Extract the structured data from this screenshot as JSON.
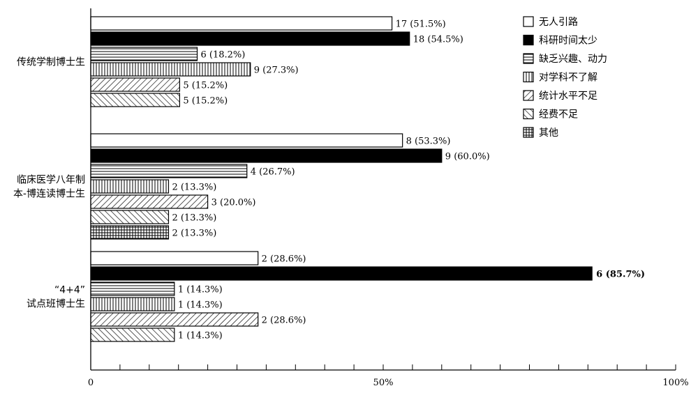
{
  "chart_data": {
    "type": "bar",
    "orientation": "horizontal",
    "xlim": [
      0,
      100
    ],
    "x_ticks": [
      "0",
      "50%",
      "100%"
    ],
    "legend": {
      "placement": "top-right"
    },
    "series": [
      {
        "name": "无人引路",
        "fill": "#ffffff",
        "pattern": "none"
      },
      {
        "name": "科研时间太少",
        "fill": "#000000",
        "pattern": "solid"
      },
      {
        "name": "缺乏兴趣、动力",
        "fill": "#ffffff",
        "pattern": "horizontal-lines"
      },
      {
        "name": "对学科不了解",
        "fill": "#ffffff",
        "pattern": "vertical-lines"
      },
      {
        "name": "统计水平不足",
        "fill": "#ffffff",
        "pattern": "diagonal-up"
      },
      {
        "name": "经费不足",
        "fill": "#ffffff",
        "pattern": "diagonal-down"
      },
      {
        "name": "其他",
        "fill": "#ffffff",
        "pattern": "grid"
      }
    ],
    "groups": [
      {
        "label_lines": [
          "传统学制博士生"
        ],
        "bars": [
          {
            "series": 0,
            "value": 51.5,
            "label": "17 (51.5%)"
          },
          {
            "series": 1,
            "value": 54.5,
            "label": "18 (54.5%)"
          },
          {
            "series": 2,
            "value": 18.2,
            "label": "6 (18.2%)"
          },
          {
            "series": 3,
            "value": 27.3,
            "label": "9 (27.3%)"
          },
          {
            "series": 4,
            "value": 15.2,
            "label": "5 (15.2%)"
          },
          {
            "series": 5,
            "value": 15.2,
            "label": "5 (15.2%)"
          }
        ]
      },
      {
        "label_lines": [
          "临床医学八年制",
          "本-博连读博士生"
        ],
        "bars": [
          {
            "series": 0,
            "value": 53.3,
            "label": "8 (53.3%)"
          },
          {
            "series": 1,
            "value": 60.0,
            "label": "9 (60.0%)"
          },
          {
            "series": 2,
            "value": 26.7,
            "label": "4 (26.7%)"
          },
          {
            "series": 3,
            "value": 13.3,
            "label": "2 (13.3%)"
          },
          {
            "series": 4,
            "value": 20.0,
            "label": "3 (20.0%)"
          },
          {
            "series": 5,
            "value": 13.3,
            "label": "2 (13.3%)"
          },
          {
            "series": 6,
            "value": 13.3,
            "label": "2 (13.3%)"
          }
        ]
      },
      {
        "label_lines": [
          "“4+4”",
          "试点班博士生"
        ],
        "bars": [
          {
            "series": 0,
            "value": 28.6,
            "label": "2 (28.6%)"
          },
          {
            "series": 1,
            "value": 85.7,
            "label": "6 (85.7%)",
            "label_inside": true
          },
          {
            "series": 2,
            "value": 14.3,
            "label": "1 (14.3%)"
          },
          {
            "series": 3,
            "value": 14.3,
            "label": "1 (14.3%)"
          },
          {
            "series": 4,
            "value": 28.6,
            "label": "2 (28.6%)"
          },
          {
            "series": 5,
            "value": 14.3,
            "label": "1 (14.3%)"
          }
        ]
      }
    ]
  }
}
